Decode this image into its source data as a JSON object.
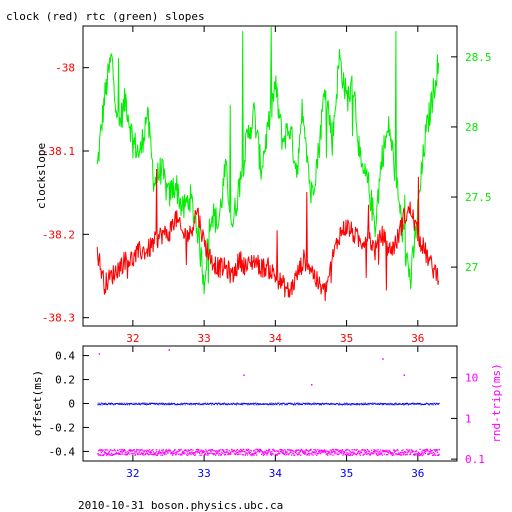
{
  "title": "clock (red) rtc (green) slopes",
  "footer": "2010-10-31 boson.physics.ubc.ca",
  "colors": {
    "frame": "#000000",
    "clock": "#ff0000",
    "rtc": "#00ee00",
    "offset": "#0000ff",
    "roundtrip": "#ff00ff"
  },
  "chart_data": [
    {
      "type": "line",
      "title": "clock (red) rtc (green) slopes",
      "ylabel": "clockslope",
      "xlim": [
        31.3,
        36.55
      ],
      "x_ticks": [
        "32",
        "33",
        "34",
        "35",
        "36"
      ],
      "y_left": {
        "lim": [
          -38.31,
          -37.95
        ],
        "ticks": [
          "-38",
          "-38.1",
          "-38.2",
          "-38.3"
        ]
      },
      "y_right": {
        "lim": [
          26.58,
          28.72
        ],
        "ticks": [
          "28.5",
          "28",
          "27.5",
          "27"
        ]
      },
      "series": [
        {
          "name": "clock (red)",
          "axis": "left",
          "x": [
            31.5,
            31.6,
            31.7,
            31.8,
            31.9,
            32.0,
            32.1,
            32.2,
            32.3,
            32.4,
            32.5,
            32.6,
            32.7,
            32.8,
            32.9,
            33.0,
            33.1,
            33.2,
            33.3,
            33.4,
            33.5,
            33.6,
            33.7,
            33.8,
            33.9,
            34.0,
            34.1,
            34.2,
            34.3,
            34.4,
            34.5,
            34.6,
            34.7,
            34.8,
            34.9,
            35.0,
            35.1,
            35.2,
            35.3,
            35.4,
            35.5,
            35.6,
            35.7,
            35.8,
            35.9,
            36.0,
            36.1,
            36.2,
            36.3
          ],
          "values": [
            -38.22,
            -38.26,
            -38.25,
            -38.24,
            -38.23,
            -38.23,
            -38.22,
            -38.22,
            -38.21,
            -38.2,
            -38.2,
            -38.18,
            -38.2,
            -38.2,
            -38.17,
            -38.21,
            -38.23,
            -38.24,
            -38.24,
            -38.25,
            -38.23,
            -38.24,
            -38.23,
            -38.24,
            -38.24,
            -38.25,
            -38.26,
            -38.27,
            -38.25,
            -38.23,
            -38.24,
            -38.26,
            -38.27,
            -38.23,
            -38.2,
            -38.19,
            -38.2,
            -38.21,
            -38.2,
            -38.22,
            -38.2,
            -38.22,
            -38.21,
            -38.18,
            -38.17,
            -38.2,
            -38.22,
            -38.24,
            -38.25
          ]
        },
        {
          "name": "rtc (green)",
          "axis": "right",
          "x": [
            31.5,
            31.6,
            31.7,
            31.8,
            31.9,
            32.0,
            32.1,
            32.2,
            32.3,
            32.4,
            32.5,
            32.6,
            32.7,
            32.8,
            32.9,
            33.0,
            33.1,
            33.2,
            33.3,
            33.4,
            33.5,
            33.6,
            33.7,
            33.8,
            33.9,
            34.0,
            34.1,
            34.2,
            34.3,
            34.4,
            34.5,
            34.6,
            34.7,
            34.8,
            34.9,
            35.0,
            35.1,
            35.2,
            35.3,
            35.4,
            35.5,
            35.6,
            35.7,
            35.8,
            35.9,
            36.0,
            36.1,
            36.2,
            36.3
          ],
          "values": [
            27.7,
            28.2,
            28.5,
            28.0,
            28.2,
            27.9,
            27.8,
            28.1,
            27.6,
            27.7,
            27.5,
            27.6,
            27.4,
            27.5,
            27.3,
            26.9,
            27.4,
            27.3,
            27.7,
            27.3,
            27.6,
            27.9,
            28.1,
            27.7,
            28.0,
            28.3,
            27.9,
            28.0,
            27.7,
            28.1,
            27.5,
            27.8,
            28.3,
            27.9,
            28.5,
            28.2,
            28.3,
            27.7,
            27.6,
            27.3,
            27.8,
            28.0,
            27.6,
            27.2,
            26.9,
            27.4,
            27.9,
            28.2,
            28.5
          ]
        }
      ]
    },
    {
      "type": "scatter",
      "ylabel": "offset(ms)",
      "y2label": "rnd-trip(ms)",
      "xlim": [
        31.3,
        36.55
      ],
      "x_ticks": [
        "32",
        "33",
        "34",
        "35",
        "36"
      ],
      "y_left": {
        "lim": [
          -0.48,
          0.48
        ],
        "ticks": [
          "0.4",
          "0.2",
          "0",
          "-0.2",
          "-0.4"
        ]
      },
      "y_right": {
        "scale": "log",
        "lim": [
          0.09,
          60
        ],
        "ticks": [
          "10",
          "1",
          "0.1"
        ]
      },
      "series": [
        {
          "name": "offset",
          "axis": "left",
          "x_range": [
            31.5,
            36.3
          ],
          "baseline": 0.0
        },
        {
          "name": "rnd-trip",
          "axis": "right",
          "x_range": [
            31.5,
            36.3
          ],
          "baseline": 0.15,
          "outliers": [
            [
              31.52,
              40
            ],
            [
              32.5,
              50
            ],
            [
              33.55,
              12
            ],
            [
              34.5,
              7
            ],
            [
              35.5,
              30
            ],
            [
              35.8,
              12
            ]
          ]
        }
      ]
    }
  ]
}
